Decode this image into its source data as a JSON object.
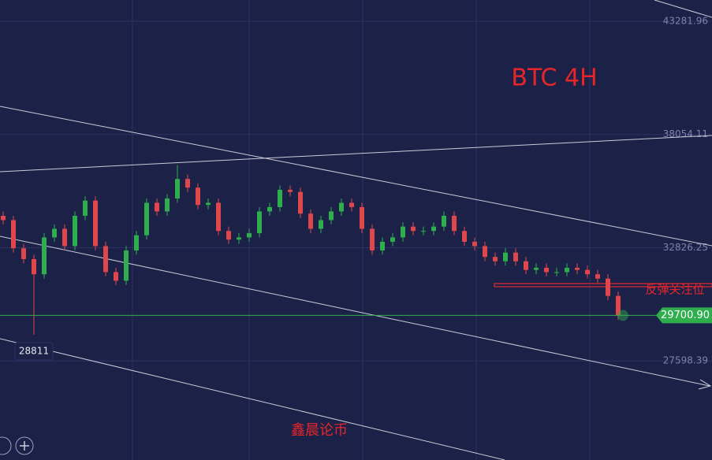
{
  "chart_data": {
    "type": "candlestick",
    "title": "BTC  4H",
    "watermark": "鑫晨论币",
    "annotation": "反弹关注位",
    "open": [
      34300,
      34100,
      32800,
      32300,
      31600,
      33300,
      33700,
      32900,
      34300,
      35000,
      32900,
      31700,
      31300,
      32700,
      33400,
      34900,
      34500,
      35100,
      36000,
      35600,
      34800,
      34900,
      33600,
      33200,
      33300,
      33500,
      34500,
      34700,
      35500,
      35400,
      34400,
      33700,
      34100,
      34500,
      34900,
      34700,
      33700,
      32700,
      33100,
      33300,
      33800,
      33600,
      33600,
      33800,
      34300,
      33600,
      33100,
      32900,
      32400,
      32200,
      32600,
      32200,
      31800,
      31900,
      31700,
      31700,
      31900,
      31800,
      31600,
      31400,
      30600
    ],
    "high": [
      34500,
      34300,
      33000,
      32500,
      33500,
      33900,
      33900,
      34500,
      35200,
      35200,
      33100,
      31900,
      32900,
      33600,
      35100,
      35100,
      35300,
      36640,
      36200,
      35800,
      35100,
      35100,
      33800,
      33500,
      33700,
      34700,
      34900,
      35700,
      35700,
      35600,
      34600,
      34300,
      34700,
      35100,
      35100,
      34900,
      33900,
      33300,
      33500,
      34000,
      34000,
      33800,
      34000,
      34500,
      34500,
      33800,
      33300,
      33100,
      32600,
      32800,
      32800,
      32400,
      32100,
      32100,
      31900,
      32100,
      32100,
      32000,
      31800,
      31600,
      30800
    ],
    "low": [
      33900,
      32600,
      32100,
      28811,
      31400,
      33100,
      32700,
      32700,
      34100,
      32700,
      31500,
      31100,
      31100,
      32500,
      33200,
      34300,
      34300,
      34900,
      35400,
      34600,
      34600,
      33400,
      33000,
      33000,
      33100,
      33300,
      34300,
      34500,
      35200,
      34200,
      33500,
      33500,
      33900,
      34300,
      34500,
      33500,
      32500,
      32500,
      32900,
      33100,
      33400,
      33400,
      33400,
      33600,
      33400,
      32900,
      32700,
      32200,
      32000,
      32000,
      32000,
      31600,
      31600,
      31500,
      31500,
      31500,
      31600,
      31400,
      31200,
      30400,
      29500
    ],
    "close": [
      34100,
      32800,
      32300,
      31600,
      33300,
      33700,
      32900,
      34300,
      35000,
      32900,
      31700,
      31300,
      32700,
      33400,
      34900,
      34500,
      35100,
      36000,
      35600,
      34800,
      34900,
      33600,
      33200,
      33300,
      33500,
      34500,
      34700,
      35500,
      35400,
      34400,
      33700,
      34100,
      34500,
      34900,
      34700,
      33700,
      32700,
      33100,
      33300,
      33800,
      33600,
      33600,
      33800,
      34300,
      33600,
      33100,
      32900,
      32400,
      32200,
      32600,
      32200,
      31800,
      31900,
      31700,
      31700,
      31900,
      31800,
      31600,
      31400,
      30600,
      29700
    ],
    "up_color": "#2fae4e",
    "down_color": "#e0474c",
    "last_price": {
      "value": 29700.9,
      "label": "29700.90"
    },
    "ylim": [
      23024.1,
      44262.2
    ],
    "yticks": [
      43281.96,
      38054.11,
      32826.25,
      27598.39
    ],
    "grid": true
  }
}
